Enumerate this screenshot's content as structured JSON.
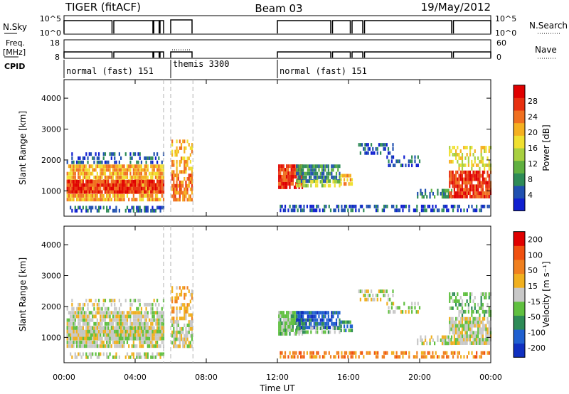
{
  "header": {
    "radar": "TIGER (fitACF)",
    "beam": "Beam 03",
    "date": "19/May/2012"
  },
  "strips": {
    "nsky": {
      "label": "N.Sky",
      "ticks": [
        "10^5",
        "10^0"
      ]
    },
    "nsearch": {
      "label": "N.Search",
      "ticks": [
        "10^5",
        "10^0"
      ]
    },
    "freq": {
      "label_line1": "Freq.",
      "label_line2": "[MHz]",
      "ticks": [
        "18",
        "8"
      ]
    },
    "nave": {
      "label": "Nave",
      "ticks": [
        "60",
        "0"
      ]
    },
    "cpid": {
      "label": "CPID"
    }
  },
  "modes": [
    {
      "name": "normal (fast) 151",
      "start_h": 0.0,
      "end_h": 5.6
    },
    {
      "name": "themis 3300",
      "start_h": 6.0,
      "end_h": 7.25
    },
    {
      "name": "normal (fast) 151",
      "start_h": 12.0,
      "end_h": 24.0
    }
  ],
  "chart_data": [
    {
      "type": "heatmap",
      "name": "power-panel",
      "xlabel": "",
      "ylabel": "Slant Range [km]",
      "xlim": [
        0,
        24
      ],
      "ylim": [
        180,
        4600
      ],
      "yticks": [
        1000,
        2000,
        3000,
        4000
      ],
      "colorbar": {
        "label": "Power [dB]",
        "ticks": [
          "4",
          "8",
          "12",
          "16",
          "20",
          "24",
          "28"
        ],
        "colors": [
          "#1020d0",
          "#2050b0",
          "#2e8b57",
          "#60b040",
          "#a8d040",
          "#f0e030",
          "#f5b020",
          "#f07020",
          "#e83010",
          "#e00000"
        ]
      },
      "data_gaps_h": [
        [
          5.6,
          6.0
        ],
        [
          7.25,
          12.0
        ]
      ]
    },
    {
      "type": "heatmap",
      "name": "velocity-panel",
      "xlabel": "Time UT",
      "ylabel": "Slant Range [km]",
      "xlim": [
        0,
        24
      ],
      "ylim": [
        180,
        4600
      ],
      "yticks": [
        1000,
        2000,
        3000,
        4000
      ],
      "xticks": [
        "00:00",
        "04:00",
        "08:00",
        "12:00",
        "16:00",
        "20:00",
        "00:00"
      ],
      "colorbar": {
        "label": "Velocity [m s⁻¹]",
        "ticks": [
          "200",
          "100",
          "50",
          "15",
          "-15",
          "-50",
          "-100",
          "-200"
        ],
        "colors": [
          "#1030c0",
          "#2060d0",
          "#2e8b57",
          "#60c040",
          "#c8c8c8",
          "#f0b020",
          "#f08020",
          "#f05010",
          "#e00000"
        ]
      },
      "data_gaps_h": [
        [
          5.6,
          6.0
        ],
        [
          7.25,
          12.0
        ]
      ]
    }
  ],
  "colors": {
    "background": "#ffffff",
    "frame": "#000000",
    "dashed": "#b0b0b0"
  }
}
